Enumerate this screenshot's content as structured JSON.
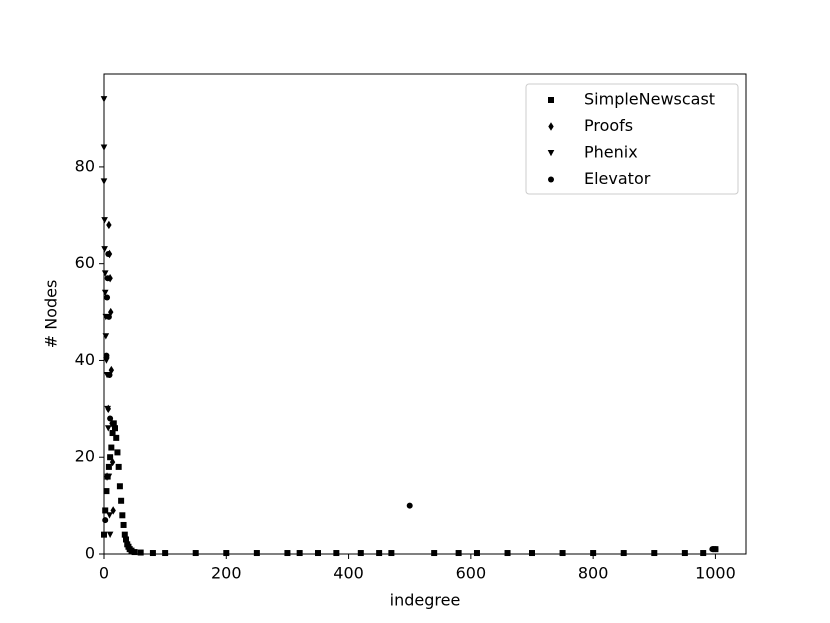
{
  "chart_data": {
    "type": "scatter",
    "xlabel": "indegree",
    "ylabel": "# Nodes",
    "xlim": [
      0,
      1050
    ],
    "ylim": [
      0,
      99.2
    ],
    "xticks": [
      0,
      200,
      400,
      600,
      800,
      1000
    ],
    "yticks": [
      0,
      20,
      40,
      60,
      80
    ],
    "legend": "upper right",
    "series": [
      {
        "name": "SimpleNewscast",
        "marker": "square",
        "color": "#000000",
        "x": [
          0,
          2,
          4,
          6,
          8,
          10,
          12,
          14,
          16,
          18,
          20,
          22,
          24,
          26,
          28,
          30,
          32,
          34,
          36,
          38,
          40,
          42,
          45,
          50,
          60,
          80,
          100,
          150,
          200,
          250,
          300,
          320,
          350,
          380,
          420,
          450,
          470,
          540,
          580,
          610,
          660,
          700,
          750,
          800,
          850,
          900,
          950,
          980,
          1000
        ],
        "values": [
          4,
          9,
          13,
          16,
          18,
          20,
          22,
          25,
          27,
          26,
          24,
          21,
          18,
          14,
          11,
          8,
          6,
          4,
          3,
          2,
          1.5,
          1,
          0.7,
          0.4,
          0.3,
          0.2,
          0.2,
          0.2,
          0.2,
          0.2,
          0.2,
          0.2,
          0.2,
          0.2,
          0.2,
          0.2,
          0.2,
          0.2,
          0.2,
          0.2,
          0.2,
          0.2,
          0.2,
          0.2,
          0.2,
          0.2,
          0.2,
          0.2,
          1
        ]
      },
      {
        "name": "Proofs",
        "marker": "diamond",
        "color": "#000000",
        "x": [
          5,
          7,
          8,
          9,
          10,
          11,
          12,
          13,
          14,
          15
        ],
        "values": [
          16,
          30,
          68,
          62,
          57,
          50,
          38,
          27,
          19,
          9
        ]
      },
      {
        "name": "Phenix",
        "marker": "triangle-down",
        "color": "#000000",
        "x": [
          0,
          0,
          0,
          1,
          1,
          2,
          2,
          3,
          3,
          4,
          5,
          6,
          7,
          8,
          9,
          10
        ],
        "values": [
          94,
          84,
          77,
          69,
          63,
          58,
          54,
          49,
          45,
          40,
          37,
          30,
          26,
          16,
          8,
          4
        ]
      },
      {
        "name": "Elevator",
        "marker": "circle",
        "color": "#000000",
        "x": [
          2,
          4,
          5,
          6,
          7,
          8,
          9,
          10,
          500,
          995,
          997,
          1000
        ],
        "values": [
          7,
          41,
          53,
          57,
          62,
          49,
          37,
          28,
          10,
          1,
          1,
          1
        ]
      }
    ]
  }
}
